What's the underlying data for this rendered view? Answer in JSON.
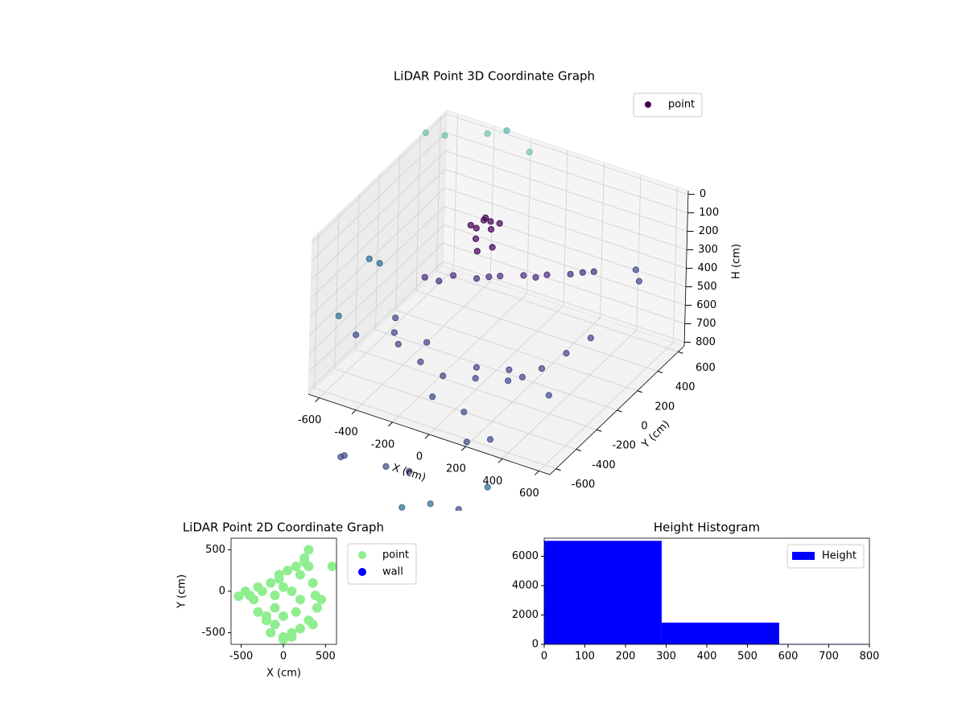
{
  "chart_data": [
    {
      "type": "scatter3d",
      "title": "LiDAR Point 3D Coordinate Graph",
      "xlabel": "X (cm)",
      "ylabel": "Y (cm)",
      "zlabel": "H (cm)",
      "xlim": [
        -660,
        660
      ],
      "ylim": [
        -660,
        660
      ],
      "zlim": [
        820,
        -20
      ],
      "xticks": [
        -600,
        -400,
        -200,
        0,
        200,
        400,
        600
      ],
      "yticks": [
        -600,
        -400,
        -200,
        0,
        200,
        400,
        600
      ],
      "zticks": [
        0,
        100,
        200,
        300,
        400,
        500,
        600,
        700,
        800
      ],
      "legend": "upper right",
      "series": [
        {
          "name": "point",
          "color": "#440154",
          "x": [
            -250,
            -220,
            -280,
            -240,
            -200,
            -300,
            -260,
            -230,
            -180,
            -320,
            -400,
            -300,
            -200,
            -100,
            0,
            100,
            200,
            300,
            -350,
            -150,
            50,
            250,
            -500,
            -400,
            -250,
            -100,
            50,
            200,
            300,
            350,
            400,
            -300,
            0,
            150,
            -450,
            250,
            600,
            500,
            -550,
            100,
            300,
            -100,
            450,
            200,
            -550,
            -500,
            -350,
            -300,
            -200,
            -650,
            -620,
            -700,
            -100,
            200,
            -300,
            0,
            300,
            100,
            -400,
            400
          ],
          "y": [
            300,
            320,
            280,
            350,
            300,
            320,
            260,
            280,
            330,
            300,
            0,
            100,
            150,
            200,
            250,
            300,
            350,
            400,
            50,
            180,
            280,
            380,
            -100,
            -250,
            -300,
            -350,
            -300,
            -250,
            -100,
            50,
            200,
            -150,
            -200,
            -150,
            -200,
            -200,
            300,
            450,
            -400,
            -500,
            -600,
            -450,
            -300,
            -650,
            250,
            350,
            500,
            600,
            650,
            -100,
            -50,
            -300,
            -900,
            -1000,
            -950,
            -850,
            -900,
            -1100,
            -800,
            -800
          ],
          "z": [
            250,
            300,
            350,
            280,
            380,
            320,
            400,
            220,
            260,
            300,
            450,
            460,
            470,
            450,
            440,
            430,
            420,
            400,
            480,
            460,
            450,
            410,
            650,
            680,
            700,
            700,
            690,
            680,
            660,
            640,
            620,
            690,
            700,
            690,
            660,
            670,
            300,
            350,
            600,
            750,
            780,
            760,
            650,
            800,
            -150,
            -100,
            -80,
            -60,
            50,
            380,
            420,
            600,
            900,
            950,
            880,
            920,
            1000,
            950,
            1000,
            900
          ],
          "colors": [
            "#440154",
            "#440154",
            "#440154",
            "#440154",
            "#440154",
            "#440154",
            "#440154",
            "#440154",
            "#440154",
            "#440154",
            "#472d7b",
            "#472d7b",
            "#472d7b",
            "#472d7b",
            "#472d7b",
            "#472d7b",
            "#472d7b",
            "#472d7b",
            "#472d7b",
            "#472d7b",
            "#472d7b",
            "#472d7b",
            "#414487",
            "#414487",
            "#414487",
            "#414487",
            "#414487",
            "#414487",
            "#414487",
            "#414487",
            "#414487",
            "#414487",
            "#414487",
            "#414487",
            "#414487",
            "#414487",
            "#3e4a89",
            "#3e4a89",
            "#3e4a89",
            "#3e4a89",
            "#3e4a89",
            "#3e4a89",
            "#3e4a89",
            "#3e4a89",
            "#6cc4a6",
            "#6cc4a6",
            "#6cc4a6",
            "#5cb8b0",
            "#6cc4a6",
            "#31688e",
            "#31688e",
            "#31688e",
            "#3e4a89",
            "#31688e",
            "#3e4a89",
            "#472d7b",
            "#3e4a89",
            "#31688e",
            "#3e4a89",
            "#31688e"
          ]
        }
      ]
    },
    {
      "type": "scatter",
      "title": "LiDAR Point 2D Coordinate Graph",
      "xlabel": "X (cm)",
      "ylabel": "Y (cm)",
      "xlim": [
        -620,
        630
      ],
      "ylim": [
        -640,
        640
      ],
      "xticks": [
        -500,
        0,
        500
      ],
      "yticks": [
        -500,
        0,
        500
      ],
      "legend": "outside right",
      "series": [
        {
          "name": "point",
          "color": "#90ee90",
          "x": [
            -450,
            -400,
            -300,
            -200,
            -100,
            0,
            100,
            200,
            300,
            400,
            450,
            -350,
            -250,
            -150,
            -50,
            50,
            150,
            250,
            350,
            -300,
            -200,
            -100,
            0,
            100,
            200,
            300,
            -150,
            0,
            150,
            250,
            350,
            -50,
            100,
            300,
            380,
            580,
            -530,
            -100,
            0,
            200
          ],
          "y": [
            0,
            -50,
            50,
            -300,
            -400,
            -550,
            -500,
            -450,
            -350,
            -200,
            -100,
            -100,
            0,
            100,
            200,
            250,
            300,
            350,
            100,
            -250,
            -350,
            -200,
            -300,
            0,
            -100,
            300,
            -500,
            50,
            -250,
            400,
            -400,
            150,
            -550,
            500,
            -50,
            300,
            -60,
            -50,
            -580,
            200
          ]
        },
        {
          "name": "wall",
          "color": "#0000ff",
          "x": [],
          "y": []
        }
      ]
    },
    {
      "type": "histogram",
      "title": "Height Histogram",
      "bins": [
        0,
        289,
        578,
        867
      ],
      "xlim": [
        0,
        800
      ],
      "ylim": [
        0,
        7230
      ],
      "xticks": [
        0,
        100,
        200,
        300,
        400,
        500,
        600,
        700,
        800
      ],
      "yticks": [
        0,
        2000,
        4000,
        6000
      ],
      "legend": "upper right",
      "series": [
        {
          "name": "Height",
          "color": "#0000ff",
          "values": [
            7050,
            1480,
            30
          ]
        }
      ]
    }
  ]
}
